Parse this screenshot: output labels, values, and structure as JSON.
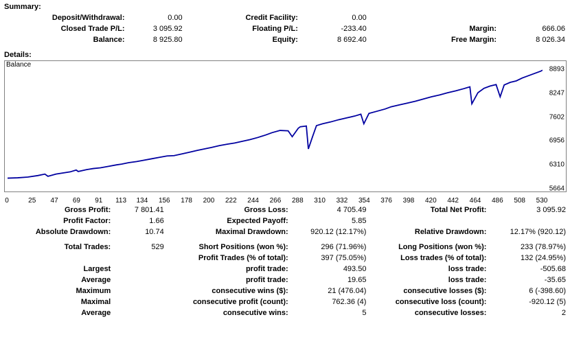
{
  "labels": {
    "summary": "Summary:",
    "details": "Details:"
  },
  "summary": {
    "rows": [
      {
        "c1l": "Deposit/Withdrawal:",
        "c1v": "0.00",
        "c2l": "Credit Facility:",
        "c2v": "0.00",
        "c3l": "",
        "c3v": ""
      },
      {
        "c1l": "Closed Trade P/L:",
        "c1v": "3 095.92",
        "c2l": "Floating P/L:",
        "c2v": "-233.40",
        "c3l": "Margin:",
        "c3v": "666.06"
      },
      {
        "c1l": "Balance:",
        "c1v": "8 925.80",
        "c2l": "Equity:",
        "c2v": "8 692.40",
        "c3l": "Free Margin:",
        "c3v": "8 026.34"
      }
    ],
    "col_widths": {
      "l": 165,
      "v": 80,
      "gap1": 30,
      "l2": 130,
      "v2": 95,
      "gap2": 50,
      "l3": 130,
      "v3": 95
    }
  },
  "chart": {
    "title": "Balance",
    "line_color": "#0000A0",
    "line_width": 1.4,
    "xlim": [
      0,
      530
    ],
    "ylim": [
      5664,
      8893
    ],
    "yticks": [
      5664,
      6310,
      6956,
      7602,
      8247,
      8893
    ],
    "xticks": [
      0,
      25,
      47,
      69,
      91,
      113,
      134,
      156,
      178,
      200,
      222,
      244,
      266,
      288,
      310,
      332,
      354,
      376,
      398,
      420,
      442,
      464,
      486,
      508,
      530
    ],
    "points": [
      [
        0,
        5950
      ],
      [
        10,
        5960
      ],
      [
        20,
        5980
      ],
      [
        30,
        6020
      ],
      [
        37,
        6060
      ],
      [
        40,
        6000
      ],
      [
        48,
        6060
      ],
      [
        55,
        6090
      ],
      [
        62,
        6120
      ],
      [
        68,
        6170
      ],
      [
        70,
        6130
      ],
      [
        78,
        6180
      ],
      [
        85,
        6210
      ],
      [
        92,
        6230
      ],
      [
        100,
        6270
      ],
      [
        108,
        6310
      ],
      [
        113,
        6330
      ],
      [
        120,
        6370
      ],
      [
        128,
        6400
      ],
      [
        134,
        6430
      ],
      [
        142,
        6470
      ],
      [
        150,
        6510
      ],
      [
        158,
        6550
      ],
      [
        165,
        6560
      ],
      [
        172,
        6600
      ],
      [
        180,
        6650
      ],
      [
        188,
        6700
      ],
      [
        195,
        6740
      ],
      [
        202,
        6780
      ],
      [
        210,
        6830
      ],
      [
        218,
        6870
      ],
      [
        225,
        6900
      ],
      [
        233,
        6950
      ],
      [
        240,
        6990
      ],
      [
        248,
        7050
      ],
      [
        256,
        7120
      ],
      [
        262,
        7180
      ],
      [
        270,
        7240
      ],
      [
        278,
        7230
      ],
      [
        282,
        7070
      ],
      [
        288,
        7300
      ],
      [
        290,
        7340
      ],
      [
        296,
        7360
      ],
      [
        298,
        6740
      ],
      [
        302,
        7060
      ],
      [
        306,
        7370
      ],
      [
        312,
        7420
      ],
      [
        320,
        7470
      ],
      [
        328,
        7530
      ],
      [
        336,
        7580
      ],
      [
        344,
        7630
      ],
      [
        350,
        7680
      ],
      [
        353,
        7420
      ],
      [
        358,
        7700
      ],
      [
        366,
        7760
      ],
      [
        374,
        7820
      ],
      [
        380,
        7880
      ],
      [
        388,
        7930
      ],
      [
        396,
        7980
      ],
      [
        404,
        8030
      ],
      [
        412,
        8090
      ],
      [
        420,
        8150
      ],
      [
        428,
        8200
      ],
      [
        436,
        8260
      ],
      [
        444,
        8310
      ],
      [
        452,
        8370
      ],
      [
        458,
        8420
      ],
      [
        460,
        7960
      ],
      [
        466,
        8260
      ],
      [
        472,
        8380
      ],
      [
        478,
        8440
      ],
      [
        484,
        8480
      ],
      [
        488,
        8150
      ],
      [
        492,
        8470
      ],
      [
        498,
        8540
      ],
      [
        504,
        8580
      ],
      [
        510,
        8660
      ],
      [
        516,
        8720
      ],
      [
        522,
        8780
      ],
      [
        528,
        8840
      ],
      [
        530,
        8870
      ]
    ]
  },
  "details": {
    "col_widths": {
      "l": 166,
      "v": 82,
      "gap1": 8,
      "l2": 178,
      "v2": 118,
      "gap2": 8,
      "l3": 172,
      "v3": 120
    },
    "rows": [
      {
        "c1l": "Gross Profit:",
        "c1v": "7 801.41",
        "c2l": "Gross Loss:",
        "c2v": "4 705.49",
        "c3l": "Total Net Profit:",
        "c3v": "3 095.92"
      },
      {
        "c1l": "Profit Factor:",
        "c1v": "1.66",
        "c2l": "Expected Payoff:",
        "c2v": "5.85",
        "c3l": "",
        "c3v": ""
      },
      {
        "c1l": "Absolute Drawdown:",
        "c1v": "10.74",
        "c2l": "Maximal Drawdown:",
        "c2v": "920.12 (12.17%)",
        "c3l": "Relative Drawdown:",
        "c3v": "12.17% (920.12)"
      },
      {
        "gap": true
      },
      {
        "c1l": "Total Trades:",
        "c1v": "529",
        "c2l": "Short Positions (won %):",
        "c2v": "296 (71.96%)",
        "c3l": "Long Positions (won %):",
        "c3v": "233 (78.97%)"
      },
      {
        "c1l": "",
        "c1v": "",
        "c2l": "Profit Trades (% of total):",
        "c2v": "397 (75.05%)",
        "c3l": "Loss trades (% of total):",
        "c3v": "132 (24.95%)"
      },
      {
        "c1l": "Largest",
        "c1v": "",
        "c2l": "profit trade:",
        "c2v": "493.50",
        "c3l": "loss trade:",
        "c3v": "-505.68"
      },
      {
        "c1l": "Average",
        "c1v": "",
        "c2l": "profit trade:",
        "c2v": "19.65",
        "c3l": "loss trade:",
        "c3v": "-35.65"
      },
      {
        "c1l": "Maximum",
        "c1v": "",
        "c2l": "consecutive wins ($):",
        "c2v": "21 (476.04)",
        "c3l": "consecutive losses ($):",
        "c3v": "6 (-398.60)"
      },
      {
        "c1l": "Maximal",
        "c1v": "",
        "c2l": "consecutive profit (count):",
        "c2v": "762.36 (4)",
        "c3l": "consecutive loss (count):",
        "c3v": "-920.12 (5)"
      },
      {
        "c1l": "Average",
        "c1v": "",
        "c2l": "consecutive wins:",
        "c2v": "5",
        "c3l": "consecutive losses:",
        "c3v": "2"
      }
    ]
  }
}
